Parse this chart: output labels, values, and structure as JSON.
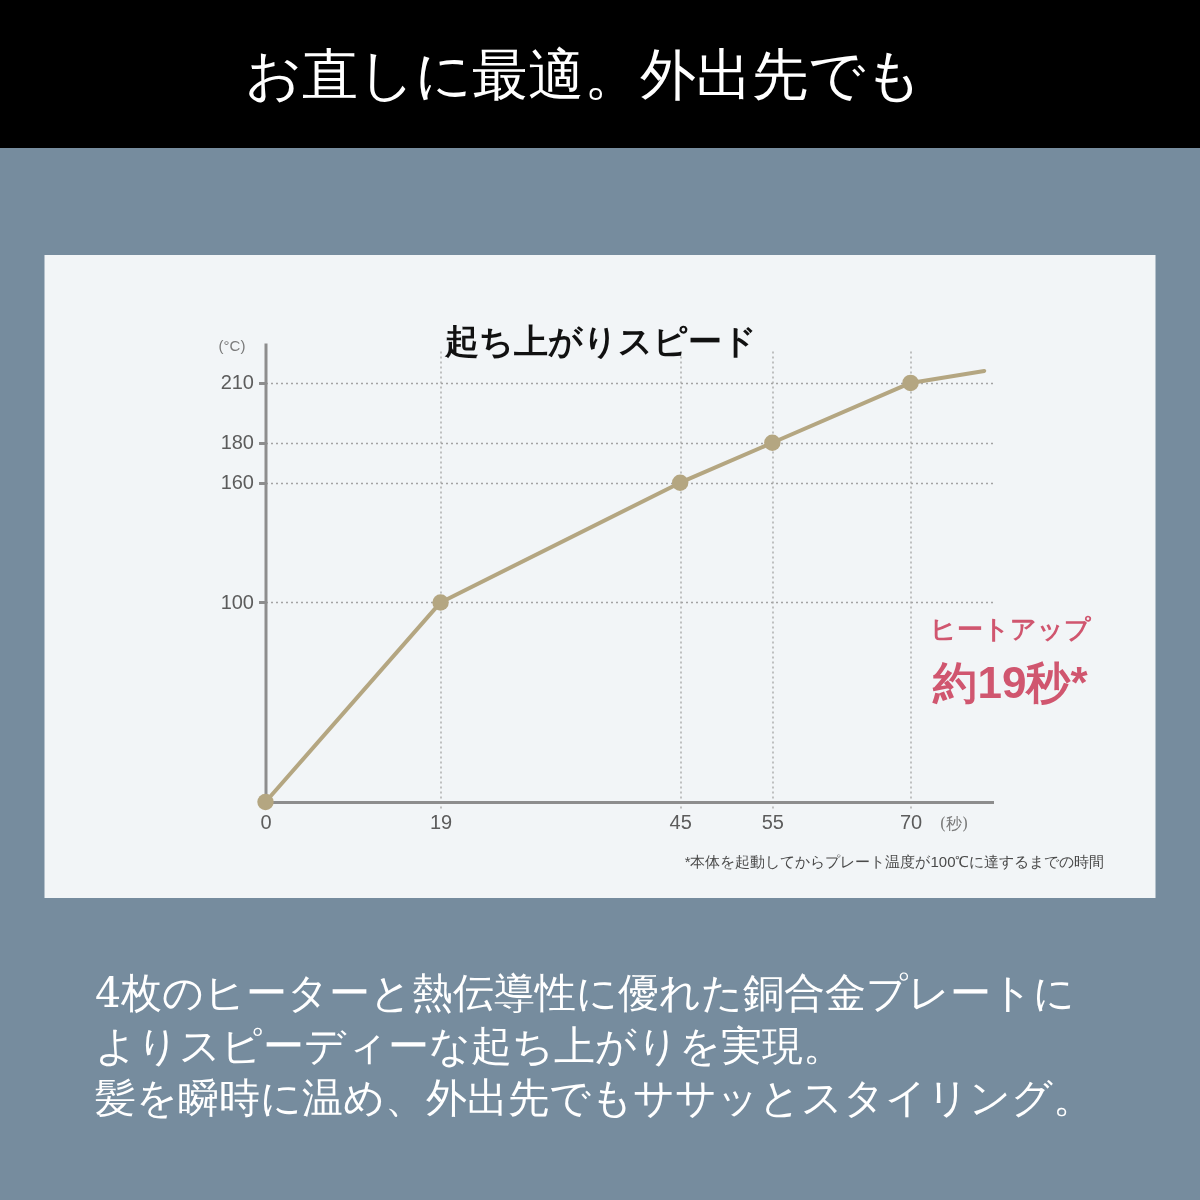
{
  "chart_data": {
    "type": "line",
    "title": "お直しに最適。外出先でも",
    "subtitle": "起ち上がりスピード",
    "xlabel": "(秒)",
    "ylabel": "(°C)",
    "xlim": [
      0,
      79
    ],
    "ylim": [
      0,
      230
    ],
    "xticks": [
      0,
      19,
      45,
      55,
      70
    ],
    "yticks": [
      100,
      160,
      180,
      210
    ],
    "grid": true,
    "line_style": "solid",
    "series": [
      {
        "color": "#b4a681",
        "marker": "circle",
        "x": [
          0,
          19,
          45,
          55,
          70
        ],
        "values": [
          0,
          100,
          160,
          180,
          210
        ]
      },
      {
        "color": "#b4a681",
        "marker": "none",
        "x": [
          70,
          78
        ],
        "values": [
          210,
          216
        ]
      }
    ],
    "annotations": [
      "ヒートアップ",
      "約19秒*",
      "*本体を起動してからプレート温度が100℃に達するまでの時間",
      "4枚のヒーターと熱伝導性に優れた銅合金プレートに",
      "よりスピーディーな起ち上がりを実現。",
      "髪を瞬時に温め、外出先でもササッとスタイリング。"
    ]
  }
}
